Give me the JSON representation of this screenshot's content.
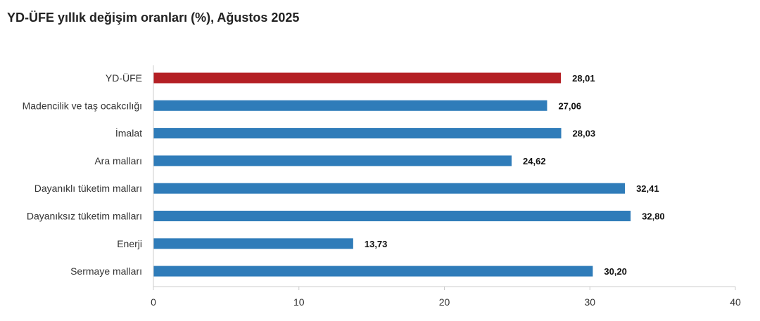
{
  "chart_data": {
    "type": "bar",
    "orientation": "horizontal",
    "title": "YD-ÜFE yıllık değişim oranları (%), Ağustos 2025",
    "categories": [
      "YD-ÜFE",
      "Madencilik ve taş ocakcılığı",
      "İmalat",
      "Ara malları",
      "Dayanıklı tüketim malları",
      "Dayanıksız tüketim malları",
      "Enerji",
      "Sermaye malları"
    ],
    "values": [
      28.01,
      27.06,
      28.03,
      24.62,
      32.41,
      32.8,
      13.73,
      30.2
    ],
    "value_labels": [
      "28,01",
      "27,06",
      "28,03",
      "24,62",
      "32,41",
      "32,80",
      "13,73",
      "30,20"
    ],
    "bar_colors": [
      "#b41f24",
      "#2f7cb9",
      "#2f7cb9",
      "#2f7cb9",
      "#2f7cb9",
      "#2f7cb9",
      "#2f7cb9",
      "#2f7cb9"
    ],
    "xlim": [
      0,
      40
    ],
    "xticks": [
      0,
      10,
      20,
      30,
      40
    ],
    "xtick_labels": [
      "0",
      "10",
      "20",
      "30",
      "40"
    ],
    "xlabel": "",
    "ylabel": "",
    "grid": false,
    "legend": "none"
  }
}
